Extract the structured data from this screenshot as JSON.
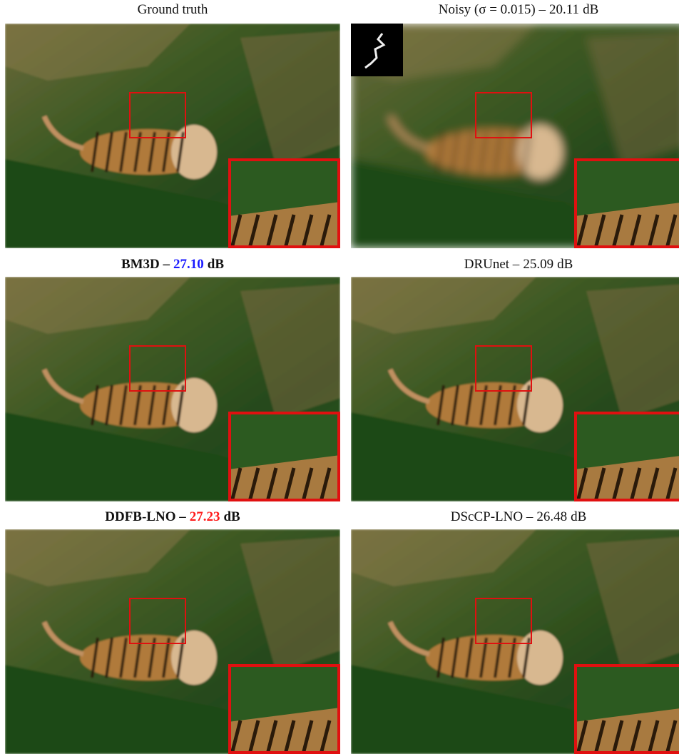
{
  "panels": [
    {
      "caption": {
        "label": "Ground truth"
      }
    },
    {
      "caption": {
        "label": "Noisy (σ = 0.015) –",
        "psnr": "20.11",
        "unit": "dB"
      },
      "kernel": true,
      "blur": true
    },
    {
      "caption": {
        "label": "BM3D –",
        "psnr": "27.10",
        "unit": "dB",
        "bold": true,
        "psnr_color": "#1a1aff"
      }
    },
    {
      "caption": {
        "label": "DRUnet –",
        "psnr": "25.09",
        "unit": "dB"
      }
    },
    {
      "caption": {
        "label": "DDFB-LNO –",
        "psnr": "27.23",
        "unit": "dB",
        "bold": true,
        "psnr_color": "#ff1a1a"
      }
    },
    {
      "caption": {
        "label": "DScCP-LNO –",
        "psnr": "26.48",
        "unit": "dB"
      }
    }
  ]
}
